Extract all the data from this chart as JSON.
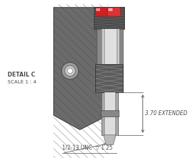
{
  "bg_color": "#ffffff",
  "detail_label": "DETAIL C",
  "scale_label": "SCALE 1 : 4",
  "dim_extended": "3.70 EXTENDED",
  "dim_thread": "1/2-13 UNC",
  "dim_depth": "1.25",
  "label_color": "#4a4a4a",
  "line_color": "#5a5a5a",
  "red_color": "#cc2222"
}
